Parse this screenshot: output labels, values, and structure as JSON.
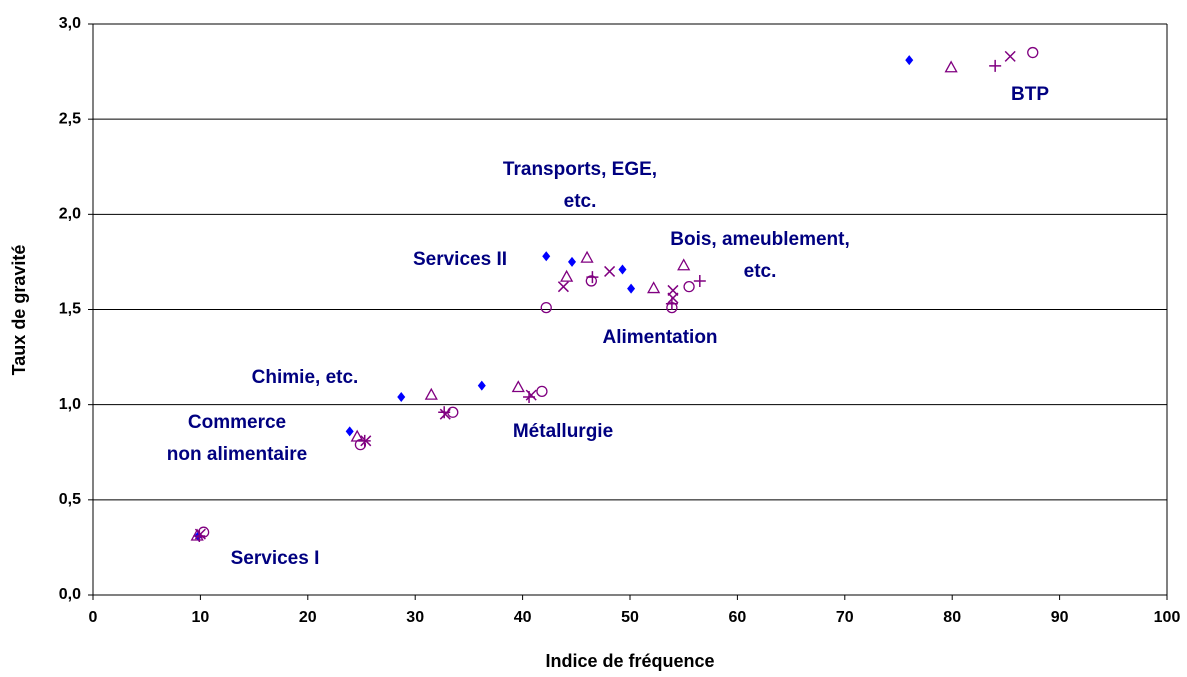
{
  "chart_data": {
    "type": "scatter",
    "x_label": "Indice de fréquence",
    "y_label": "Taux de gravité",
    "xlim": [
      0,
      100
    ],
    "xticks": [
      0,
      10,
      20,
      30,
      40,
      50,
      60,
      70,
      80,
      90,
      100
    ],
    "ylim": [
      0,
      3
    ],
    "yticks": [
      {
        "value": 0,
        "label": "0,0"
      },
      {
        "value": 0.5,
        "label": "0,5"
      },
      {
        "value": 1,
        "label": "1,0"
      },
      {
        "value": 1.5,
        "label": "1,5"
      },
      {
        "value": 2,
        "label": "2,0"
      },
      {
        "value": 2.5,
        "label": "2,5"
      },
      {
        "value": 3,
        "label": "3,0"
      }
    ],
    "grid": true,
    "annotations": [
      [
        "Transports, EGE,",
        "etc."
      ],
      [
        "Services II"
      ],
      [
        "Bois, ameublement,",
        "etc."
      ],
      [
        "BTP"
      ],
      [
        "Alimentation"
      ],
      [
        "Chimie, etc."
      ],
      [
        "Métallurgie"
      ],
      [
        "Commerce",
        "non alimentaire"
      ],
      [
        "Services I"
      ]
    ],
    "series": [
      {
        "marker": "diamond",
        "color": "#0000ff",
        "x": [
          9.8,
          23.9,
          28.7,
          36.2,
          42.2,
          44.6,
          49.3,
          50.1,
          76
        ],
        "values": [
          0.31,
          0.86,
          1.04,
          1.1,
          1.78,
          1.75,
          1.71,
          1.61,
          2.81
        ]
      },
      {
        "marker": "triangle",
        "color": "#800080",
        "x": [
          9.7,
          24.6,
          31.5,
          39.6,
          44.1,
          46,
          52.2,
          55,
          79.9
        ],
        "values": [
          0.31,
          0.83,
          1.05,
          1.09,
          1.67,
          1.77,
          1.61,
          1.73,
          2.77
        ]
      },
      {
        "marker": "plus",
        "color": "#800080",
        "x": [
          9.9,
          25.3,
          32.7,
          40.6,
          46.5,
          53.9,
          56.5,
          84
        ],
        "values": [
          0.31,
          0.81,
          0.96,
          1.04,
          1.67,
          1.53,
          1.65,
          2.78
        ]
      },
      {
        "marker": "cross",
        "color": "#800080",
        "x": [
          10,
          25.4,
          32.8,
          40.8,
          43.8,
          48.1,
          54,
          54,
          85.4
        ],
        "values": [
          0.32,
          0.81,
          0.95,
          1.05,
          1.62,
          1.7,
          1.6,
          1.56,
          2.83
        ]
      },
      {
        "marker": "circle",
        "color": "#800080",
        "x": [
          10.3,
          24.9,
          33.5,
          41.8,
          42.2,
          46.4,
          53.9,
          55.5,
          87.5
        ],
        "values": [
          0.33,
          0.79,
          0.96,
          1.07,
          1.51,
          1.65,
          1.51,
          1.62,
          2.85
        ]
      }
    ]
  }
}
